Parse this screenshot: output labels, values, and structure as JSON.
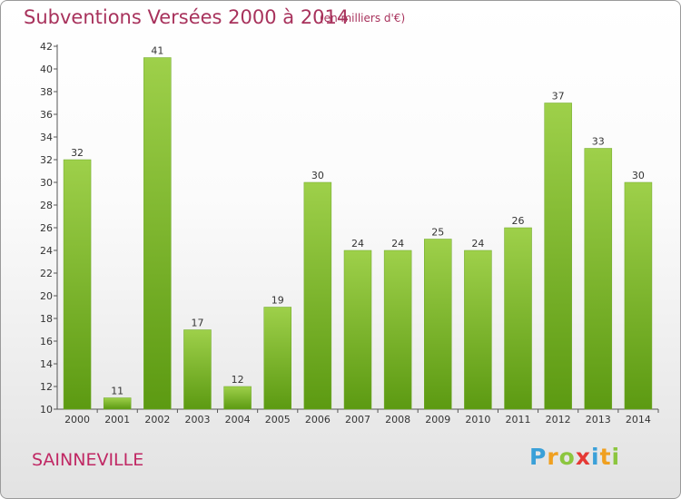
{
  "header": {
    "title": "Subventions Versées 2000 à 2014",
    "subtitle": "(en milliers d'€)"
  },
  "footer": {
    "place": "SAINNEVILLE",
    "logo_letters": [
      "P",
      "r",
      "o",
      "x",
      "i",
      "t",
      "i"
    ],
    "logo_colors": [
      "#3aa0d8",
      "#f0a020",
      "#8cc63f",
      "#e53935",
      "#3aa0d8",
      "#f0a020",
      "#8cc63f"
    ]
  },
  "chart_data": {
    "type": "bar",
    "title": "Subventions Versées 2000 à 2014",
    "subtitle": "(en milliers d'€)",
    "categories": [
      "2000",
      "2001",
      "2002",
      "2003",
      "2004",
      "2005",
      "2006",
      "2007",
      "2008",
      "2009",
      "2010",
      "2011",
      "2012",
      "2013",
      "2014"
    ],
    "values": [
      32,
      11,
      41,
      17,
      12,
      19,
      30,
      24,
      24,
      25,
      24,
      26,
      37,
      33,
      30
    ],
    "ylim": [
      10,
      42
    ],
    "yticks": [
      10,
      12,
      14,
      16,
      18,
      20,
      22,
      24,
      26,
      28,
      30,
      32,
      34,
      36,
      38,
      40,
      42
    ],
    "grid": false,
    "bar_color_top": "#9ed04a",
    "bar_color_bottom": "#5c9a12",
    "data_labels": true
  }
}
